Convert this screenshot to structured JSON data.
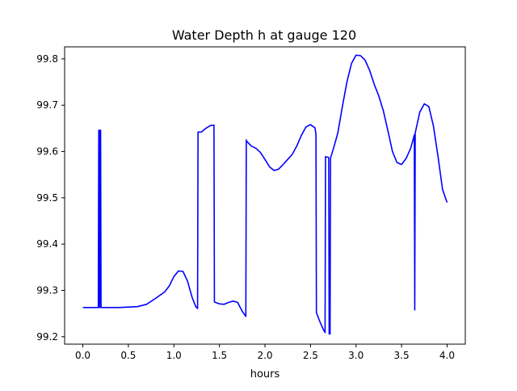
{
  "chart_data": {
    "type": "line",
    "title": "Water Depth h at gauge 120",
    "xlabel": "hours",
    "ylabel": "",
    "xlim": [
      -0.2,
      4.2
    ],
    "ylim": [
      99.184,
      99.826
    ],
    "xticks": [
      0.0,
      0.5,
      1.0,
      1.5,
      2.0,
      2.5,
      3.0,
      3.5,
      4.0
    ],
    "xtick_labels": [
      "0.0",
      "0.5",
      "1.0",
      "1.5",
      "2.0",
      "2.5",
      "3.0",
      "3.5",
      "4.0"
    ],
    "yticks": [
      99.2,
      99.3,
      99.4,
      99.5,
      99.6,
      99.7,
      99.8
    ],
    "ytick_labels": [
      "99.2",
      "99.3",
      "99.4",
      "99.5",
      "99.6",
      "99.7",
      "99.8"
    ],
    "grid": false,
    "series": [
      {
        "color": "#0000ff",
        "points": [
          [
            0.0,
            99.263
          ],
          [
            0.17,
            99.263
          ],
          [
            0.175,
            99.646
          ],
          [
            0.18,
            99.646
          ],
          [
            0.185,
            99.263
          ],
          [
            0.19,
            99.646
          ],
          [
            0.195,
            99.646
          ],
          [
            0.2,
            99.263
          ],
          [
            0.4,
            99.263
          ],
          [
            0.6,
            99.265
          ],
          [
            0.7,
            99.27
          ],
          [
            0.8,
            99.283
          ],
          [
            0.9,
            99.297
          ],
          [
            0.95,
            99.31
          ],
          [
            1.0,
            99.33
          ],
          [
            1.05,
            99.342
          ],
          [
            1.1,
            99.341
          ],
          [
            1.15,
            99.32
          ],
          [
            1.2,
            99.285
          ],
          [
            1.24,
            99.265
          ],
          [
            1.26,
            99.261
          ],
          [
            1.265,
            99.642
          ],
          [
            1.3,
            99.642
          ],
          [
            1.35,
            99.65
          ],
          [
            1.4,
            99.656
          ],
          [
            1.44,
            99.657
          ],
          [
            1.445,
            99.275
          ],
          [
            1.5,
            99.271
          ],
          [
            1.55,
            99.27
          ],
          [
            1.6,
            99.274
          ],
          [
            1.65,
            99.277
          ],
          [
            1.7,
            99.274
          ],
          [
            1.75,
            99.255
          ],
          [
            1.79,
            99.244
          ],
          [
            1.795,
            99.625
          ],
          [
            1.8,
            99.622
          ],
          [
            1.85,
            99.612
          ],
          [
            1.9,
            99.607
          ],
          [
            1.95,
            99.598
          ],
          [
            2.0,
            99.583
          ],
          [
            2.05,
            99.567
          ],
          [
            2.1,
            99.559
          ],
          [
            2.15,
            99.562
          ],
          [
            2.2,
            99.572
          ],
          [
            2.25,
            99.583
          ],
          [
            2.3,
            99.594
          ],
          [
            2.35,
            99.612
          ],
          [
            2.4,
            99.635
          ],
          [
            2.45,
            99.653
          ],
          [
            2.5,
            99.658
          ],
          [
            2.55,
            99.651
          ],
          [
            2.56,
            99.636
          ],
          [
            2.565,
            99.252
          ],
          [
            2.6,
            99.234
          ],
          [
            2.64,
            99.216
          ],
          [
            2.66,
            99.209
          ],
          [
            2.665,
            99.589
          ],
          [
            2.7,
            99.587
          ],
          [
            2.705,
            99.206
          ],
          [
            2.715,
            99.206
          ],
          [
            2.72,
            99.586
          ],
          [
            2.75,
            99.605
          ],
          [
            2.8,
            99.64
          ],
          [
            2.85,
            99.697
          ],
          [
            2.9,
            99.75
          ],
          [
            2.95,
            99.79
          ],
          [
            3.0,
            99.808
          ],
          [
            3.05,
            99.807
          ],
          [
            3.1,
            99.797
          ],
          [
            3.15,
            99.775
          ],
          [
            3.2,
            99.745
          ],
          [
            3.25,
            99.72
          ],
          [
            3.3,
            99.688
          ],
          [
            3.35,
            99.645
          ],
          [
            3.4,
            99.6
          ],
          [
            3.45,
            99.576
          ],
          [
            3.5,
            99.572
          ],
          [
            3.55,
            99.585
          ],
          [
            3.6,
            99.607
          ],
          [
            3.63,
            99.628
          ],
          [
            3.64,
            99.636
          ],
          [
            3.645,
            99.258
          ],
          [
            3.65,
            99.64
          ],
          [
            3.7,
            99.685
          ],
          [
            3.75,
            99.703
          ],
          [
            3.8,
            99.697
          ],
          [
            3.85,
            99.655
          ],
          [
            3.9,
            99.59
          ],
          [
            3.95,
            99.518
          ],
          [
            4.0,
            99.49
          ]
        ]
      }
    ]
  }
}
